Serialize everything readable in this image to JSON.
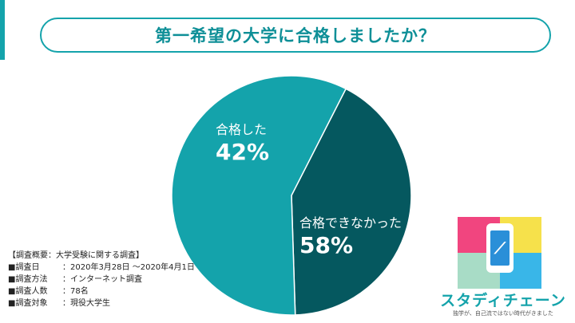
{
  "title": "第一希望の大学に合格しましたか？",
  "chart_data": {
    "type": "pie",
    "slices": [
      {
        "label": "合格した",
        "value": 42,
        "value_label": "42%",
        "color": "#05585f"
      },
      {
        "label": "合格できなかった",
        "value": 58,
        "value_label": "58%",
        "color": "#14a3ab"
      }
    ]
  },
  "summary": {
    "heading": "【調査概要：大学受験に関する調査】",
    "rows": [
      {
        "key": "■調査日",
        "value": "：2020年3月28日 〜2020年4月1日"
      },
      {
        "key": "■調査方法",
        "value": "：インターネット調査"
      },
      {
        "key": "■調査人数",
        "value": "：78名"
      },
      {
        "key": "■調査対象",
        "value": "：現役大学生"
      }
    ]
  },
  "logo": {
    "brand": "スタディチェーン",
    "tagline": "独学が、自己流ではない時代がきました",
    "icon": "phone-icon",
    "colors": [
      "#f1457f",
      "#f6e14b",
      "#a8dcc6",
      "#39b6e8"
    ]
  }
}
